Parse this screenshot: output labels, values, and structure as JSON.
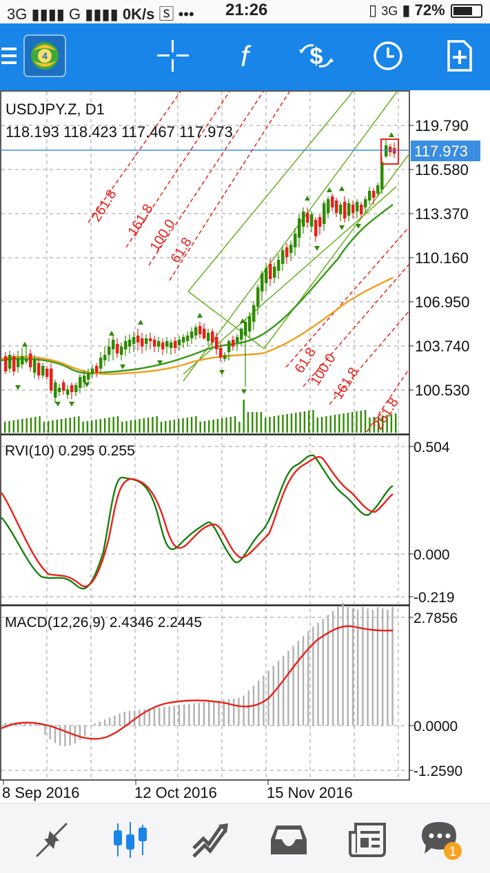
{
  "status": {
    "network_left": "3G",
    "network_mid": "G",
    "speed": "0K/s",
    "dots": "•••",
    "time": "21:26",
    "network_right": "3G",
    "battery_pct": "72%",
    "battery_level": 0.72
  },
  "toolbar": {
    "menu_icon": "menu-icon",
    "logo_icon": "mt4-logo-icon",
    "crosshair_icon": "crosshair-icon",
    "indicators_icon": "function-icon",
    "symbol_icon": "symbol-refresh-icon",
    "period_icon": "clock-icon",
    "new_order_icon": "new-order-icon"
  },
  "main_chart": {
    "symbol_timeframe": "USDJPY.Z, D1",
    "ohlc": "118.193 118.423 117.467 117.973",
    "current_price": "117.973",
    "price_labels": [
      "119.790",
      "116.580",
      "113.370",
      "110.160",
      "106.950",
      "103.740",
      "100.530"
    ],
    "fib_upper": [
      "261.8",
      "161.8",
      "100.0",
      "61.8"
    ],
    "fib_lower": [
      "61.8",
      "100.0",
      "161.8",
      "261.8"
    ],
    "colors": {
      "bull": "#2e8b00",
      "bear": "#e8201a",
      "fib": "#e8201a",
      "channel": "#6ab023",
      "ma_fast": "#3c9a1e",
      "ma_slow": "#f0a020",
      "bid_line": "#3a8de0"
    }
  },
  "rvi": {
    "title": "RVI(10) 0.295 0.255",
    "labels": [
      "0.504",
      "0.000",
      "-0.219"
    ]
  },
  "macd": {
    "title": "MACD(12,26,9) 2.4346 2.2445",
    "labels": [
      "2.7856",
      "0.0000",
      "-1.2590"
    ]
  },
  "dates": [
    "8 Sep 2016",
    "12 Oct 2016",
    "15 Nov 2016"
  ],
  "nav": {
    "items": [
      {
        "name": "quotes",
        "icon": "quotes-arrows-icon"
      },
      {
        "name": "chart",
        "icon": "candlestick-icon"
      },
      {
        "name": "trade",
        "icon": "trade-icon"
      },
      {
        "name": "history",
        "icon": "history-inbox-icon"
      },
      {
        "name": "news",
        "icon": "news-icon"
      },
      {
        "name": "messages",
        "icon": "chat-icon",
        "badge": "1"
      }
    ]
  }
}
